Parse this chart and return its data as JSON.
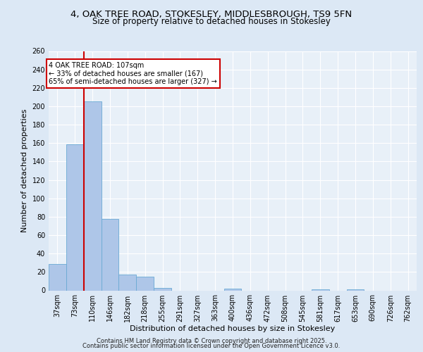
{
  "title_line1": "4, OAK TREE ROAD, STOKESLEY, MIDDLESBROUGH, TS9 5FN",
  "title_line2": "Size of property relative to detached houses in Stokesley",
  "xlabel": "Distribution of detached houses by size in Stokesley",
  "ylabel": "Number of detached properties",
  "bar_labels": [
    "37sqm",
    "73sqm",
    "110sqm",
    "146sqm",
    "182sqm",
    "218sqm",
    "255sqm",
    "291sqm",
    "327sqm",
    "363sqm",
    "400sqm",
    "436sqm",
    "472sqm",
    "508sqm",
    "545sqm",
    "581sqm",
    "617sqm",
    "653sqm",
    "690sqm",
    "726sqm",
    "762sqm"
  ],
  "bar_values": [
    29,
    159,
    205,
    78,
    17,
    15,
    3,
    0,
    0,
    0,
    2,
    0,
    0,
    0,
    0,
    1,
    0,
    1,
    0,
    0,
    0
  ],
  "bar_color": "#aec6e8",
  "bar_edge_color": "#6aaad4",
  "vline_x_index": 2,
  "vline_color": "#cc0000",
  "annotation_line1": "4 OAK TREE ROAD: 107sqm",
  "annotation_line2": "← 33% of detached houses are smaller (167)",
  "annotation_line3": "65% of semi-detached houses are larger (327) →",
  "annotation_bg": "#ffffff",
  "annotation_border": "#cc0000",
  "ylim": [
    0,
    260
  ],
  "yticks": [
    0,
    20,
    40,
    60,
    80,
    100,
    120,
    140,
    160,
    180,
    200,
    220,
    240,
    260
  ],
  "bg_color": "#dce8f5",
  "plot_bg_color": "#e8f0f8",
  "grid_color": "#ffffff",
  "title_fontsize": 9.5,
  "subtitle_fontsize": 8.5,
  "ylabel_fontsize": 8,
  "xlabel_fontsize": 8,
  "tick_fontsize": 7,
  "footer_line1": "Contains HM Land Registry data © Crown copyright and database right 2025.",
  "footer_line2": "Contains public sector information licensed under the Open Government Licence v3.0."
}
